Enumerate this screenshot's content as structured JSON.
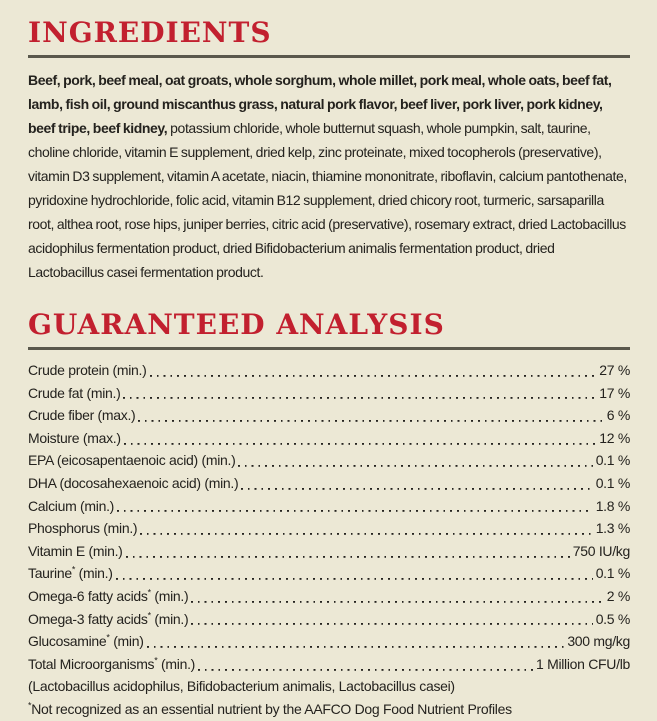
{
  "label": {
    "colors": {
      "background": "#ece8d5",
      "heading_red": "#c2202f",
      "rule": "#5a584c",
      "text": "#24221e"
    },
    "ingredients_section": {
      "title": "INGREDIENTS",
      "text_bold": "Beef, pork, beef meal, oat groats, whole sorghum, whole millet, pork meal, whole oats, beef fat, lamb, fish oil, ground miscanthus grass, natural pork flavor, beef liver, pork liver, pork kidney, beef tripe, beef kidney,",
      "text_regular": " potassium chloride, whole butternut squash, whole pumpkin, salt, taurine, choline chloride, vitamin E supplement, dried kelp, zinc proteinate, mixed tocopherols (preservative), vitamin D3 supplement, vitamin A acetate, niacin, thiamine mononitrate, riboflavin, calcium pantothenate, pyridoxine hydrochloride, folic acid, vitamin B12 supplement, dried chicory root, turmeric, sarsaparilla root, althea root, rose hips, juniper berries, citric acid (preservative), rosemary extract, dried Lactobacillus acidophilus fermentation product, dried Bifidobacterium animalis fermentation product, dried Lactobacillus casei fermentation product."
    },
    "guaranteed_analysis": {
      "title": "GUARANTEED ANALYSIS",
      "rows": [
        {
          "name": "Crude protein",
          "marker": "",
          "qualifier": "(min.)",
          "value": "27 %"
        },
        {
          "name": "Crude fat",
          "marker": "",
          "qualifier": "(min.)",
          "value": "17 %"
        },
        {
          "name": "Crude fiber",
          "marker": "",
          "qualifier": "(max.)",
          "value": "6 %"
        },
        {
          "name": "Moisture",
          "marker": "",
          "qualifier": "(max.)",
          "value": "12 %"
        },
        {
          "name": "EPA (eicosapentaenoic acid)",
          "marker": "",
          "qualifier": "(min.)",
          "value": "0.1 %"
        },
        {
          "name": "DHA (docosahexaenoic acid)",
          "marker": "",
          "qualifier": "(min.)",
          "value": "0.1 %"
        },
        {
          "name": "Calcium",
          "marker": "",
          "qualifier": "(min.)",
          "value": "1.8 %"
        },
        {
          "name": "Phosphorus",
          "marker": "",
          "qualifier": "(min.)",
          "value": "1.3 %"
        },
        {
          "name": "Vitamin E",
          "marker": "",
          "qualifier": "(min.)",
          "value": "750 IU/kg"
        },
        {
          "name": "Taurine",
          "marker": "*",
          "qualifier": "(min.)",
          "value": "0.1 %"
        },
        {
          "name": "Omega-6 fatty acids",
          "marker": "*",
          "qualifier": "(min.)",
          "value": "2 %"
        },
        {
          "name": "Omega-3 fatty acids",
          "marker": "*",
          "qualifier": "(min.)",
          "value": "0.5 %"
        },
        {
          "name": "Glucosamine",
          "marker": "*",
          "qualifier": "(min)",
          "value": "300 mg/kg"
        },
        {
          "name": "Total Microorganisms",
          "marker": "*",
          "qualifier": "(min.)",
          "value": "1 Million CFU/lb"
        }
      ],
      "microorganisms_detail": "(Lactobacillus acidophilus, Bifidobacterium animalis, Lactobacillus casei)",
      "footnote_marker": "*",
      "footnote_text": "Not recognized as an essential nutrient by the AAFCO Dog Food Nutrient Profiles"
    }
  }
}
